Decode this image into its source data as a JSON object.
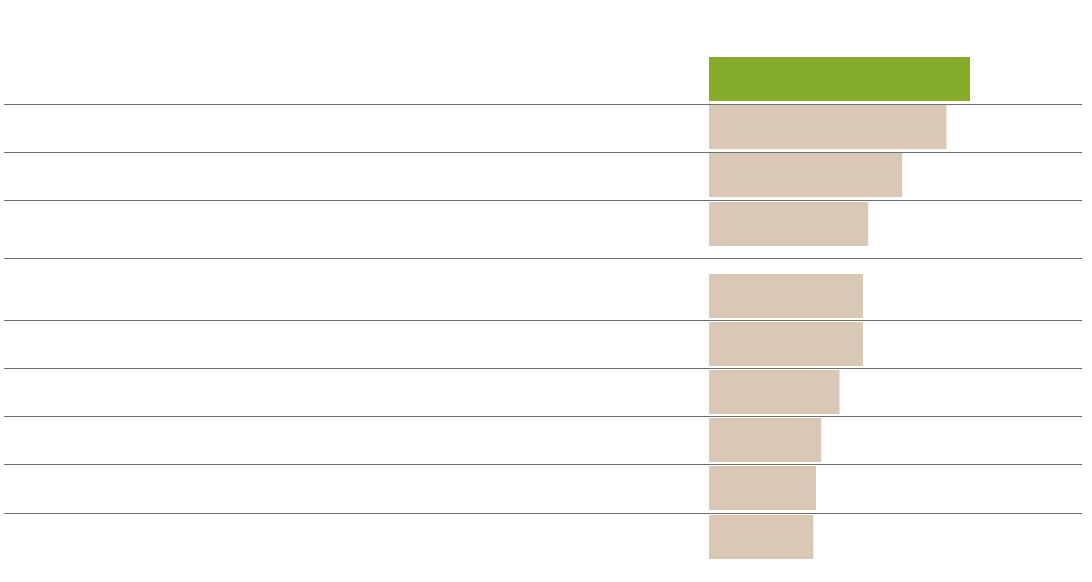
{
  "chart_data": {
    "type": "bar",
    "orientation": "horizontal",
    "categories": [
      null,
      null,
      null,
      null,
      null,
      null,
      null,
      null,
      null,
      null
    ],
    "values": [
      100,
      91,
      74,
      61,
      59,
      59,
      50,
      43,
      41,
      40
    ],
    "colors": [
      "#84ac2a",
      "#d8c8b5",
      "#d8c8b5",
      "#d8c8b5",
      "#d8c8b5",
      "#d8c8b5",
      "#d8c8b5",
      "#d8c8b5",
      "#d8c8b5",
      "#d8c8b5"
    ],
    "xlim": [
      0,
      100
    ]
  }
}
